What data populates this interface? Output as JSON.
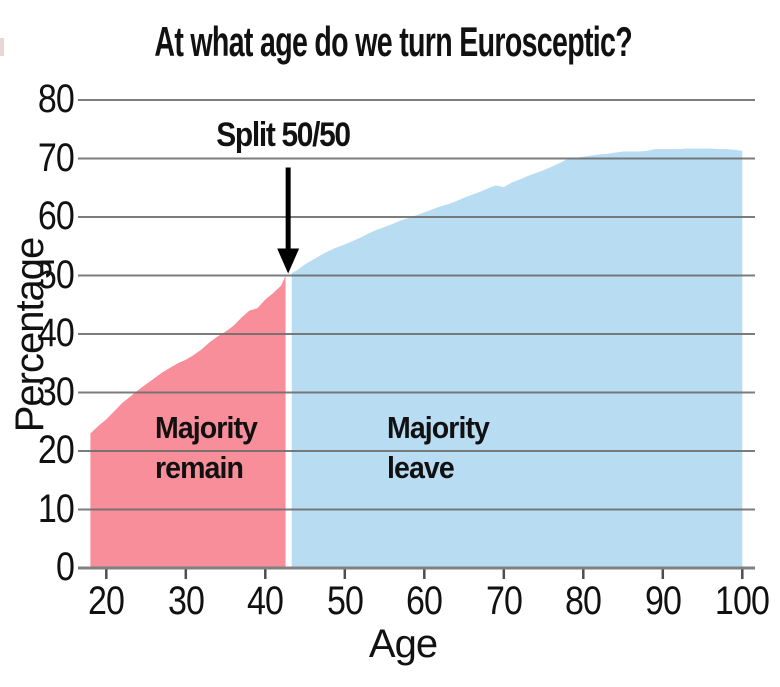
{
  "chart_data": {
    "type": "area",
    "title": "At what age do we turn Eurosceptic?",
    "xlabel": "Age",
    "ylabel": "Percentage",
    "xlim": [
      18,
      100
    ],
    "ylim": [
      0,
      80
    ],
    "xticks": [
      20,
      30,
      40,
      50,
      60,
      70,
      80,
      90,
      100
    ],
    "yticks": [
      0,
      10,
      20,
      30,
      40,
      50,
      60,
      70,
      80
    ],
    "grid": "horizontal gridlines drawn over fills",
    "legend_position": "none",
    "annotation": {
      "label": "Split 50/50",
      "x": 43,
      "y": 50
    },
    "split_age": 43,
    "split_pct": 50,
    "regions": [
      {
        "name": "Majority remain",
        "label_lines": [
          "Majority",
          "remain"
        ],
        "color": "#f78e99",
        "age_range": [
          18,
          43
        ]
      },
      {
        "name": "Majority leave",
        "label_lines": [
          "Majority",
          "leave"
        ],
        "color": "#b8dcf2",
        "age_range": [
          43,
          100
        ]
      }
    ],
    "points": [
      [
        18,
        23
      ],
      [
        19,
        24.3
      ],
      [
        20,
        25.4
      ],
      [
        21,
        26.8
      ],
      [
        22,
        28.2
      ],
      [
        23,
        29.3
      ],
      [
        24,
        30.4
      ],
      [
        25,
        31.4
      ],
      [
        26,
        32.4
      ],
      [
        27,
        33.4
      ],
      [
        28,
        34.2
      ],
      [
        29,
        35
      ],
      [
        30,
        35.6
      ],
      [
        31,
        36.4
      ],
      [
        32,
        37.4
      ],
      [
        33,
        38.6
      ],
      [
        34,
        39.6
      ],
      [
        35,
        40.4
      ],
      [
        36,
        41.4
      ],
      [
        37,
        42.8
      ],
      [
        38,
        44
      ],
      [
        39,
        44.4
      ],
      [
        40,
        45.9
      ],
      [
        41,
        47
      ],
      [
        42,
        48.3
      ],
      [
        43,
        50
      ],
      [
        44,
        50.9
      ],
      [
        45,
        51.9
      ],
      [
        46,
        52.7
      ],
      [
        47,
        53.5
      ],
      [
        48,
        54.2
      ],
      [
        49,
        54.8
      ],
      [
        50,
        55.3
      ],
      [
        51,
        55.9
      ],
      [
        52,
        56.5
      ],
      [
        53,
        57.2
      ],
      [
        54,
        57.8
      ],
      [
        55,
        58.3
      ],
      [
        56,
        58.8
      ],
      [
        57,
        59.4
      ],
      [
        58,
        59.8
      ],
      [
        59,
        60.3
      ],
      [
        60,
        60.8
      ],
      [
        61,
        61.3
      ],
      [
        62,
        61.8
      ],
      [
        63,
        62.2
      ],
      [
        64,
        62.7
      ],
      [
        65,
        63.3
      ],
      [
        66,
        63.8
      ],
      [
        67,
        64.3
      ],
      [
        68,
        64.9
      ],
      [
        69,
        65.4
      ],
      [
        70,
        65.1
      ],
      [
        71,
        65.9
      ],
      [
        72,
        66.4
      ],
      [
        73,
        67
      ],
      [
        74,
        67.5
      ],
      [
        75,
        68
      ],
      [
        76,
        68.6
      ],
      [
        77,
        69.2
      ],
      [
        78,
        69.9
      ],
      [
        79,
        70.1
      ],
      [
        80,
        70.3
      ],
      [
        81,
        70.5
      ],
      [
        82,
        70.7
      ],
      [
        83,
        70.8
      ],
      [
        84,
        71
      ],
      [
        85,
        71.2
      ],
      [
        86,
        71.2
      ],
      [
        87,
        71.2
      ],
      [
        88,
        71.3
      ],
      [
        89,
        71.6
      ],
      [
        90,
        71.6
      ],
      [
        91,
        71.6
      ],
      [
        92,
        71.6
      ],
      [
        93,
        71.7
      ],
      [
        94,
        71.7
      ],
      [
        95,
        71.7
      ],
      [
        96,
        71.7
      ],
      [
        97,
        71.6
      ],
      [
        98,
        71.6
      ],
      [
        99,
        71.5
      ],
      [
        100,
        71.3
      ]
    ]
  },
  "colors": {
    "remain_fill": "#f78e99",
    "leave_fill": "#b8dcf2",
    "grid": "#6e6e6e",
    "axis": "#808080",
    "tick": "#4d4d4d",
    "text": "#111111",
    "split_gap": "#ffffff",
    "arrow": "#000000"
  }
}
